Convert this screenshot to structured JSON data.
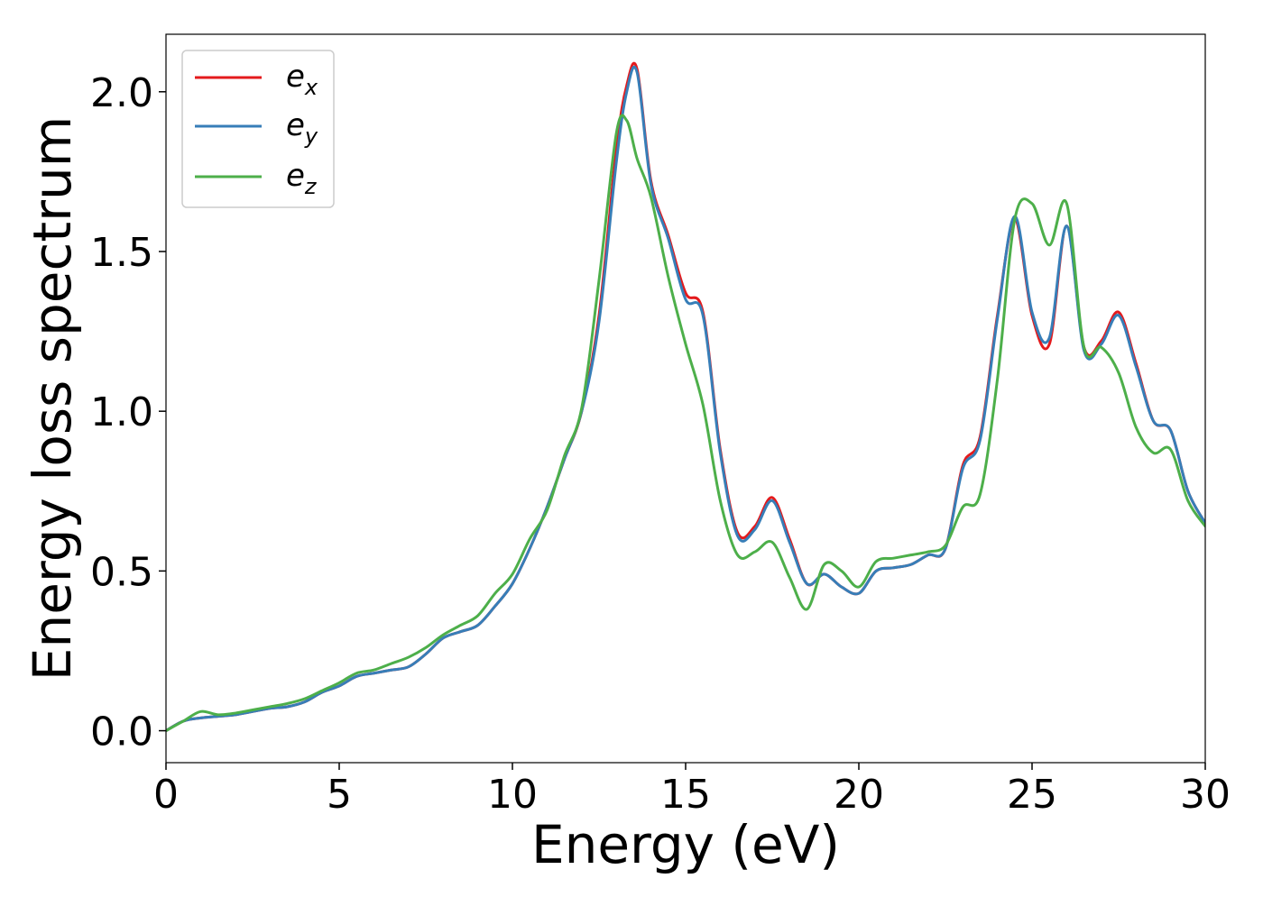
{
  "chart_data": {
    "type": "line",
    "title": "",
    "xlabel": "Energy (eV)",
    "ylabel": "Energy loss spectrum",
    "xlim": [
      0,
      30
    ],
    "ylim": [
      -0.1,
      2.18
    ],
    "xticks": [
      0,
      5,
      10,
      15,
      20,
      25,
      30
    ],
    "xtick_labels": [
      "0",
      "5",
      "10",
      "15",
      "20",
      "25",
      "30"
    ],
    "yticks": [
      0.0,
      0.5,
      1.0,
      1.5,
      2.0
    ],
    "ytick_labels": [
      "0.0",
      "0.5",
      "1.0",
      "1.5",
      "2.0"
    ],
    "grid": false,
    "legend_position": "top-left",
    "series": [
      {
        "name": "e_x",
        "legend_base": "e",
        "legend_sub": "x",
        "color": "#e41a1c",
        "x": [
          0,
          0.5,
          1.0,
          1.5,
          2.0,
          2.5,
          3.0,
          3.5,
          4.0,
          4.5,
          5.0,
          5.5,
          6.0,
          6.5,
          7.0,
          7.5,
          8.0,
          8.5,
          9.0,
          9.5,
          10.0,
          10.5,
          11.0,
          11.5,
          12.0,
          12.5,
          13.0,
          13.3,
          13.6,
          14.0,
          14.5,
          15.0,
          15.5,
          16.0,
          16.5,
          17.0,
          17.5,
          18.0,
          18.5,
          19.0,
          19.5,
          20.0,
          20.5,
          21.0,
          21.5,
          22.0,
          22.5,
          23.0,
          23.5,
          24.0,
          24.5,
          25.0,
          25.5,
          26.0,
          26.5,
          27.0,
          27.5,
          28.0,
          28.5,
          29.0,
          29.5,
          30.0
        ],
        "y": [
          0.0,
          0.03,
          0.04,
          0.045,
          0.05,
          0.06,
          0.07,
          0.075,
          0.09,
          0.12,
          0.14,
          0.17,
          0.18,
          0.19,
          0.2,
          0.24,
          0.29,
          0.31,
          0.33,
          0.39,
          0.46,
          0.57,
          0.7,
          0.85,
          1.0,
          1.3,
          1.82,
          2.02,
          2.07,
          1.72,
          1.55,
          1.37,
          1.31,
          0.88,
          0.62,
          0.64,
          0.73,
          0.6,
          0.46,
          0.49,
          0.45,
          0.43,
          0.5,
          0.51,
          0.52,
          0.55,
          0.57,
          0.83,
          0.92,
          1.3,
          1.6,
          1.3,
          1.21,
          1.58,
          1.2,
          1.22,
          1.31,
          1.15,
          0.97,
          0.94,
          0.75,
          0.65
        ]
      },
      {
        "name": "e_y",
        "legend_base": "e",
        "legend_sub": "y",
        "color": "#377eb8",
        "x": [
          0,
          0.5,
          1.0,
          1.5,
          2.0,
          2.5,
          3.0,
          3.5,
          4.0,
          4.5,
          5.0,
          5.5,
          6.0,
          6.5,
          7.0,
          7.5,
          8.0,
          8.5,
          9.0,
          9.5,
          10.0,
          10.5,
          11.0,
          11.5,
          12.0,
          12.5,
          13.0,
          13.3,
          13.6,
          14.0,
          14.5,
          15.0,
          15.5,
          16.0,
          16.5,
          17.0,
          17.5,
          18.0,
          18.5,
          19.0,
          19.5,
          20.0,
          20.5,
          21.0,
          21.5,
          22.0,
          22.5,
          23.0,
          23.5,
          24.0,
          24.5,
          25.0,
          25.5,
          26.0,
          26.5,
          27.0,
          27.5,
          28.0,
          28.5,
          29.0,
          29.5,
          30.0
        ],
        "y": [
          0.0,
          0.03,
          0.04,
          0.045,
          0.05,
          0.06,
          0.07,
          0.075,
          0.09,
          0.12,
          0.14,
          0.17,
          0.18,
          0.19,
          0.2,
          0.24,
          0.29,
          0.31,
          0.33,
          0.39,
          0.46,
          0.57,
          0.7,
          0.85,
          1.0,
          1.28,
          1.78,
          2.0,
          2.06,
          1.71,
          1.54,
          1.35,
          1.3,
          0.87,
          0.61,
          0.63,
          0.72,
          0.59,
          0.46,
          0.49,
          0.45,
          0.43,
          0.5,
          0.51,
          0.52,
          0.55,
          0.57,
          0.82,
          0.91,
          1.29,
          1.61,
          1.31,
          1.23,
          1.58,
          1.19,
          1.21,
          1.3,
          1.14,
          0.97,
          0.94,
          0.75,
          0.65
        ]
      },
      {
        "name": "e_z",
        "legend_base": "e",
        "legend_sub": "z",
        "color": "#4daf4a",
        "x": [
          0,
          0.5,
          1.0,
          1.5,
          2.0,
          2.5,
          3.0,
          3.5,
          4.0,
          4.5,
          5.0,
          5.5,
          6.0,
          6.5,
          7.0,
          7.5,
          8.0,
          8.5,
          9.0,
          9.5,
          10.0,
          10.5,
          11.0,
          11.5,
          12.0,
          12.5,
          13.0,
          13.3,
          13.6,
          14.0,
          14.5,
          15.0,
          15.5,
          16.0,
          16.5,
          17.0,
          17.5,
          18.0,
          18.5,
          19.0,
          19.5,
          20.0,
          20.5,
          21.0,
          21.5,
          22.0,
          22.5,
          23.0,
          23.5,
          24.0,
          24.5,
          25.0,
          25.5,
          26.0,
          26.5,
          27.0,
          27.5,
          28.0,
          28.5,
          29.0,
          29.5,
          30.0
        ],
        "y": [
          0.0,
          0.03,
          0.06,
          0.05,
          0.055,
          0.065,
          0.075,
          0.085,
          0.1,
          0.125,
          0.15,
          0.18,
          0.19,
          0.21,
          0.23,
          0.26,
          0.3,
          0.33,
          0.36,
          0.43,
          0.49,
          0.6,
          0.69,
          0.86,
          1.01,
          1.41,
          1.87,
          1.91,
          1.79,
          1.67,
          1.42,
          1.21,
          1.02,
          0.72,
          0.55,
          0.56,
          0.59,
          0.48,
          0.38,
          0.52,
          0.5,
          0.45,
          0.53,
          0.54,
          0.55,
          0.56,
          0.58,
          0.7,
          0.74,
          1.1,
          1.6,
          1.65,
          1.52,
          1.65,
          1.2,
          1.2,
          1.12,
          0.95,
          0.87,
          0.88,
          0.72,
          0.64
        ]
      }
    ]
  }
}
